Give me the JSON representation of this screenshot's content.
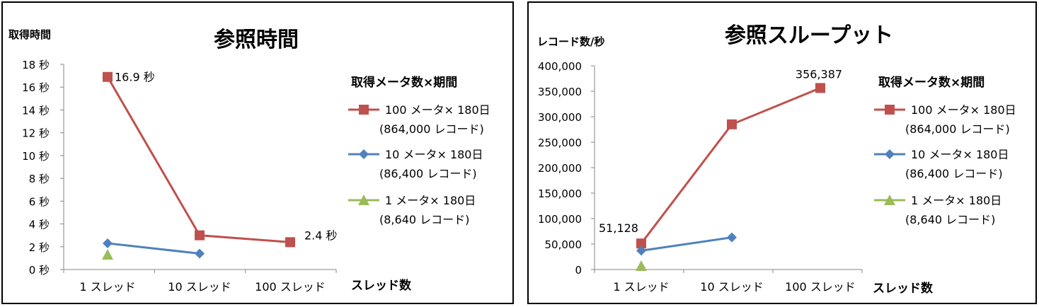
{
  "charts": [
    {
      "title": "参照時間",
      "ylabel": "取得時間",
      "xlabel": "スレッド数",
      "legend_title": "取得メータ数×期間",
      "yticks": [
        "0 秒",
        "2 秒",
        "4 秒",
        "6 秒",
        "8 秒",
        "10 秒",
        "12 秒",
        "14 秒",
        "16 秒",
        "18 秒"
      ],
      "xticks": [
        "1 スレッド",
        "10 スレッド",
        "100 スレッド"
      ],
      "series": [
        {
          "line1": "100 メータ× 180日",
          "line2": "(864,000 レコード)",
          "color": "#c0504d",
          "marker": "square"
        },
        {
          "line1": "10 メータ× 180日",
          "line2": "(86,400 レコード)",
          "color": "#4f81bd",
          "marker": "diamond"
        },
        {
          "line1": "1 メータ× 180日",
          "line2": "(8,640 レコード)",
          "color": "#9bbb59",
          "marker": "triangle"
        }
      ],
      "labels": [
        "16.9 秒",
        "2.4 秒"
      ]
    },
    {
      "title": "参照スループット",
      "ylabel": "レコード数/秒",
      "xlabel": "スレッド数",
      "legend_title": "取得メータ数×期間",
      "yticks": [
        "0",
        "50,000",
        "100,000",
        "150,000",
        "200,000",
        "250,000",
        "300,000",
        "350,000",
        "400,000"
      ],
      "xticks": [
        "1 スレッド",
        "10 スレッド",
        "100 スレッド"
      ],
      "series": [
        {
          "line1": "100 メータ× 180日",
          "line2": "(864,000 レコード)",
          "color": "#c0504d",
          "marker": "square"
        },
        {
          "line1": "10 メータ× 180日",
          "line2": "(86,400 レコード)",
          "color": "#4f81bd",
          "marker": "diamond"
        },
        {
          "line1": "1 メータ× 180日",
          "line2": "(8,640 レコード)",
          "color": "#9bbb59",
          "marker": "triangle"
        }
      ],
      "labels": [
        "51,128",
        "356,387"
      ]
    }
  ],
  "chart_data": [
    {
      "type": "line",
      "title": "参照時間",
      "ylabel": "取得時間",
      "xlabel": "スレッド数",
      "categories": [
        "1 スレッド",
        "10 スレッド",
        "100 スレッド"
      ],
      "ylim": [
        0,
        18
      ],
      "grid": false,
      "legend_placement": "right",
      "series": [
        {
          "name": "100 メータ× 180日 (864,000 レコード)",
          "values": [
            16.9,
            3.0,
            2.4
          ]
        },
        {
          "name": "10 メータ× 180日 (86,400 レコード)",
          "values": [
            2.3,
            1.4,
            null
          ]
        },
        {
          "name": "1 メータ× 180日 (8,640 レコード)",
          "values": [
            1.3,
            null,
            null
          ]
        }
      ],
      "annotations": [
        "16.9 秒",
        "2.4 秒"
      ]
    },
    {
      "type": "line",
      "title": "参照スループット",
      "ylabel": "レコード数/秒",
      "xlabel": "スレッド数",
      "categories": [
        "1 スレッド",
        "10 スレッド",
        "100 スレッド"
      ],
      "ylim": [
        0,
        400000
      ],
      "grid": false,
      "legend_placement": "right",
      "series": [
        {
          "name": "100 メータ× 180日 (864,000 レコード)",
          "values": [
            51128,
            285000,
            356387
          ]
        },
        {
          "name": "10 メータ× 180日 (86,400 レコード)",
          "values": [
            37000,
            63000,
            null
          ]
        },
        {
          "name": "1 メータ× 180日 (8,640 レコード)",
          "values": [
            7000,
            null,
            null
          ]
        }
      ],
      "annotations": [
        "51,128",
        "356,387"
      ]
    }
  ]
}
